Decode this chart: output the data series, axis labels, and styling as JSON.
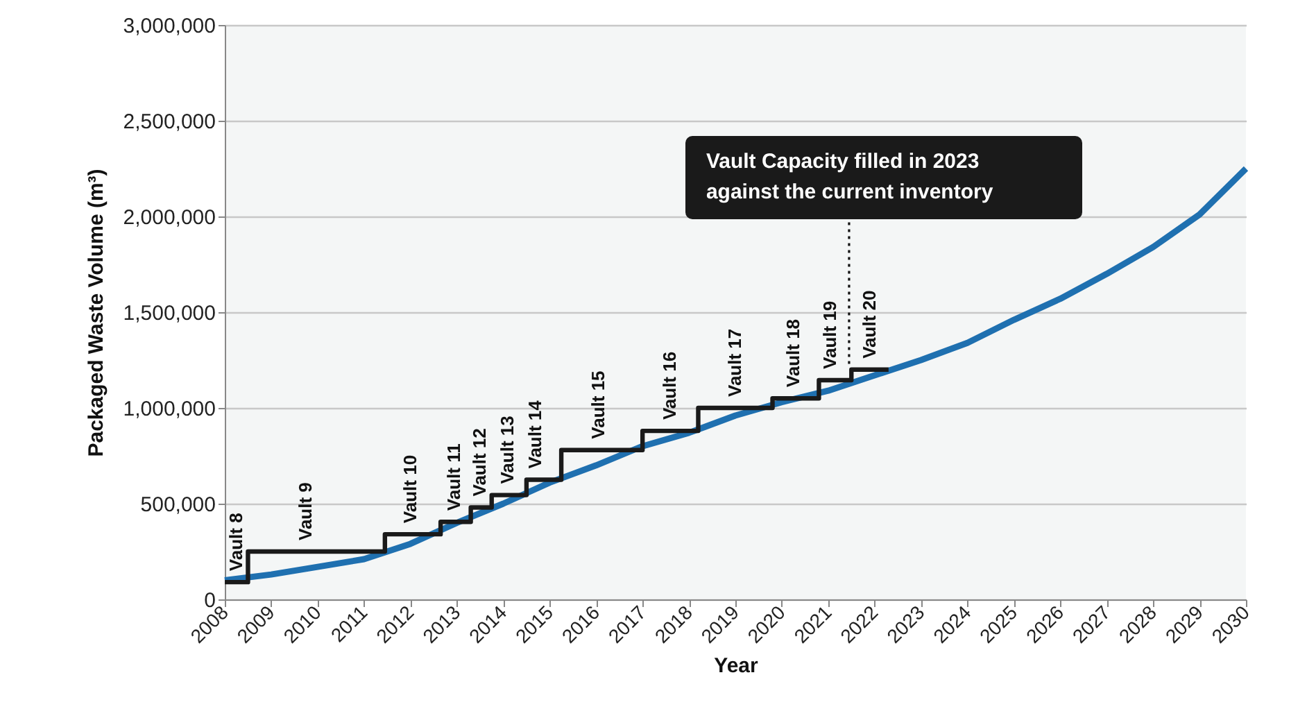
{
  "chart_data": {
    "type": "line",
    "xlabel": "Year",
    "ylabel": "Packaged Waste Volume (m³)",
    "xlim": [
      2008,
      2030
    ],
    "xticks": [
      2008,
      2009,
      2010,
      2011,
      2012,
      2013,
      2014,
      2015,
      2016,
      2017,
      2018,
      2019,
      2020,
      2021,
      2022,
      2023,
      2024,
      2025,
      2026,
      2027,
      2028,
      2029,
      2030
    ],
    "ylim": [
      0,
      3000000
    ],
    "yticks": [
      0,
      {
        "value": 500000,
        "label": "500,000"
      },
      {
        "value": 1000000,
        "label": "1,000,000"
      },
      {
        "value": 1500000,
        "label": "1,500,000"
      },
      {
        "value": 2000000,
        "label": "2,000,000"
      },
      {
        "value": 2500000,
        "label": "2,500,000"
      },
      {
        "value": 3000000,
        "label": "3,000,000"
      }
    ],
    "grid": "y",
    "marker": "none",
    "series": [
      {
        "type": "line",
        "color": "#1f70b0",
        "x": [
          2008,
          2009,
          2010,
          2011,
          2012,
          2013,
          2014,
          2015,
          2016,
          2017,
          2018,
          2019,
          2020,
          2021,
          2022,
          2023,
          2024,
          2025,
          2026,
          2027,
          2028,
          2029,
          2030
        ],
        "values": [
          100000,
          130000,
          170000,
          210000,
          290000,
          400000,
          500000,
          610000,
          700000,
          800000,
          870000,
          960000,
          1030000,
          1090000,
          1170000,
          1250000,
          1340000,
          1460000,
          1570000,
          1700000,
          1840000,
          2010000,
          2250000
        ]
      },
      {
        "type": "step",
        "color": "#1a1a1a",
        "x": [
          2008,
          2008.5,
          2011.45,
          2012.65,
          2013.3,
          2013.75,
          2014.5,
          2015.25,
          2017,
          2018.2,
          2019.8,
          2020.8,
          2021.5,
          2022.3
        ],
        "values": [
          90000,
          250000,
          340000,
          405000,
          480000,
          545000,
          625000,
          780000,
          880000,
          1000000,
          1050000,
          1145000,
          1200000,
          1200000
        ]
      }
    ],
    "annotations": [
      {
        "text": "Vault 8",
        "x": 2008.25,
        "y": 90000
      },
      {
        "text": "Vault 9",
        "x": 2009.75,
        "y": 250000
      },
      {
        "text": "Vault 10",
        "x": 2012,
        "y": 340000
      },
      {
        "text": "Vault 11",
        "x": 2012.95,
        "y": 405000
      },
      {
        "text": "Vault 12",
        "x": 2013.5,
        "y": 480000
      },
      {
        "text": "Vault 13",
        "x": 2014.1,
        "y": 545000
      },
      {
        "text": "Vault 14",
        "x": 2014.7,
        "y": 625000
      },
      {
        "text": "Vault 15",
        "x": 2016.05,
        "y": 780000
      },
      {
        "text": "Vault 16",
        "x": 2017.6,
        "y": 880000
      },
      {
        "text": "Vault 17",
        "x": 2019,
        "y": 1000000
      },
      {
        "text": "Vault 18",
        "x": 2020.25,
        "y": 1050000
      },
      {
        "text": "Vault 19",
        "x": 2021.05,
        "y": 1145000
      },
      {
        "text": "Vault 20",
        "x": 2021.9,
        "y": 1200000
      },
      {
        "text": "Vault Capacity filled in 2023\nagainst the current inventory",
        "x": 2021.45,
        "y": 1230000
      }
    ]
  }
}
